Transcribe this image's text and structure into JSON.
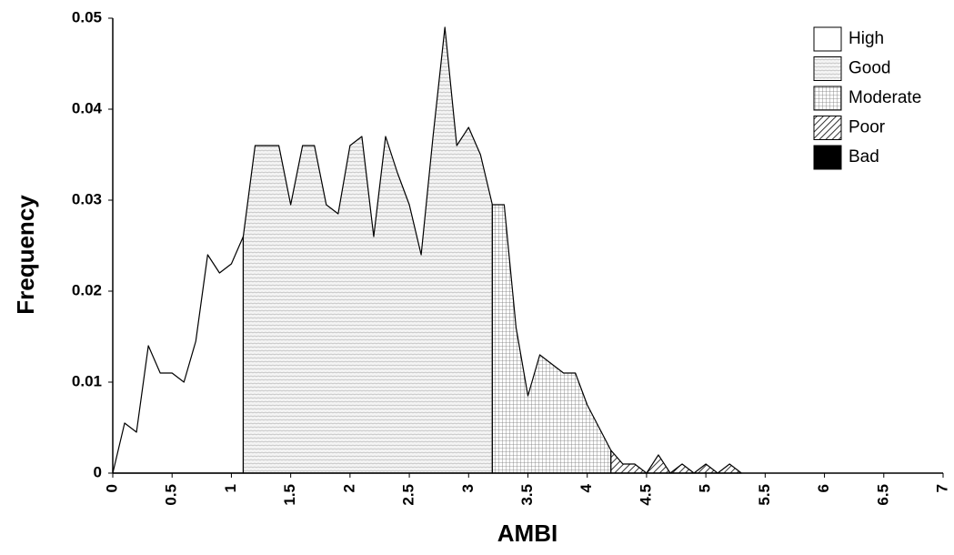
{
  "chart_data": {
    "type": "area",
    "x_label": "AMBI",
    "y_label": "Frequency",
    "x": [
      0,
      0.1,
      0.2,
      0.3,
      0.4,
      0.5,
      0.6,
      0.7,
      0.8,
      0.9,
      1.0,
      1.1,
      1.2,
      1.3,
      1.4,
      1.5,
      1.6,
      1.7,
      1.8,
      1.9,
      2.0,
      2.1,
      2.2,
      2.3,
      2.4,
      2.5,
      2.6,
      2.7,
      2.8,
      2.9,
      3.0,
      3.1,
      3.2,
      3.3,
      3.4,
      3.5,
      3.6,
      3.7,
      3.8,
      3.9,
      4.0,
      4.1,
      4.2,
      4.3,
      4.4,
      4.5,
      4.6,
      4.7,
      4.8,
      4.9,
      5.0,
      5.1,
      5.2,
      5.3
    ],
    "series": [
      {
        "name": "High",
        "color": "#ffffff",
        "pattern": "solid",
        "values": [
          0,
          0.0055,
          0.0045,
          0.014,
          0.011,
          0.011,
          0.01,
          0.0145,
          0.024,
          0.022,
          0.023,
          0.026,
          null,
          null,
          null,
          null,
          null,
          null,
          null,
          null,
          null,
          null,
          null,
          null,
          null,
          null,
          null,
          null,
          null,
          null,
          null,
          null,
          null,
          null,
          null,
          null,
          null,
          null,
          null,
          null,
          null,
          null,
          null,
          null,
          null,
          null,
          null,
          null,
          null,
          null,
          null,
          null,
          null,
          null
        ]
      },
      {
        "name": "Good",
        "color": "#c8c8c8",
        "pattern": "dots",
        "values": [
          null,
          null,
          null,
          null,
          null,
          null,
          null,
          null,
          null,
          null,
          null,
          0.026,
          0.036,
          0.036,
          0.036,
          0.0295,
          0.036,
          0.036,
          0.0295,
          0.0285,
          0.036,
          0.037,
          0.026,
          0.037,
          0.033,
          0.0295,
          0.024,
          0.037,
          0.049,
          0.036,
          0.038,
          0.035,
          0.0295,
          null,
          null,
          null,
          null,
          null,
          null,
          null,
          null,
          null,
          null,
          null,
          null,
          null,
          null,
          null,
          null,
          null,
          null,
          null,
          null,
          null
        ]
      },
      {
        "name": "Moderate",
        "color": "#8a8a8a",
        "pattern": "grid",
        "values": [
          null,
          null,
          null,
          null,
          null,
          null,
          null,
          null,
          null,
          null,
          null,
          null,
          null,
          null,
          null,
          null,
          null,
          null,
          null,
          null,
          null,
          null,
          null,
          null,
          null,
          null,
          null,
          null,
          null,
          null,
          null,
          null,
          0.0295,
          0.0295,
          0.016,
          0.0085,
          0.013,
          0.012,
          0.011,
          0.011,
          0.0075,
          0.005,
          0.0025,
          null,
          null,
          null,
          null,
          null,
          null,
          null,
          null,
          null,
          null,
          null
        ]
      },
      {
        "name": "Poor",
        "color": "#333333",
        "pattern": "hatch",
        "values": [
          null,
          null,
          null,
          null,
          null,
          null,
          null,
          null,
          null,
          null,
          null,
          null,
          null,
          null,
          null,
          null,
          null,
          null,
          null,
          null,
          null,
          null,
          null,
          null,
          null,
          null,
          null,
          null,
          null,
          null,
          null,
          null,
          null,
          null,
          null,
          null,
          null,
          null,
          null,
          null,
          null,
          null,
          0.0025,
          0.001,
          0.001,
          0,
          0.002,
          0,
          0.001,
          0,
          0.001,
          0,
          0.001,
          0
        ]
      },
      {
        "name": "Bad",
        "color": "#000000",
        "pattern": "solid",
        "values": [
          null,
          null,
          null,
          null,
          null,
          null,
          null,
          null,
          null,
          null,
          null,
          null,
          null,
          null,
          null,
          null,
          null,
          null,
          null,
          null,
          null,
          null,
          null,
          null,
          null,
          null,
          null,
          null,
          null,
          null,
          null,
          null,
          null,
          null,
          null,
          null,
          null,
          null,
          null,
          null,
          null,
          null,
          null,
          null,
          null,
          null,
          null,
          null,
          null,
          null,
          null,
          null,
          null,
          null
        ]
      }
    ],
    "xlim": [
      0,
      7
    ],
    "ylim": [
      0,
      0.05
    ],
    "xticks": [
      0,
      0.5,
      1,
      1.5,
      2,
      2.5,
      3,
      3.5,
      4,
      4.5,
      5,
      5.5,
      6,
      6.5,
      7
    ],
    "yticks": [
      0,
      0.01,
      0.02,
      0.03,
      0.04,
      0.05
    ],
    "legend": "upper right"
  }
}
